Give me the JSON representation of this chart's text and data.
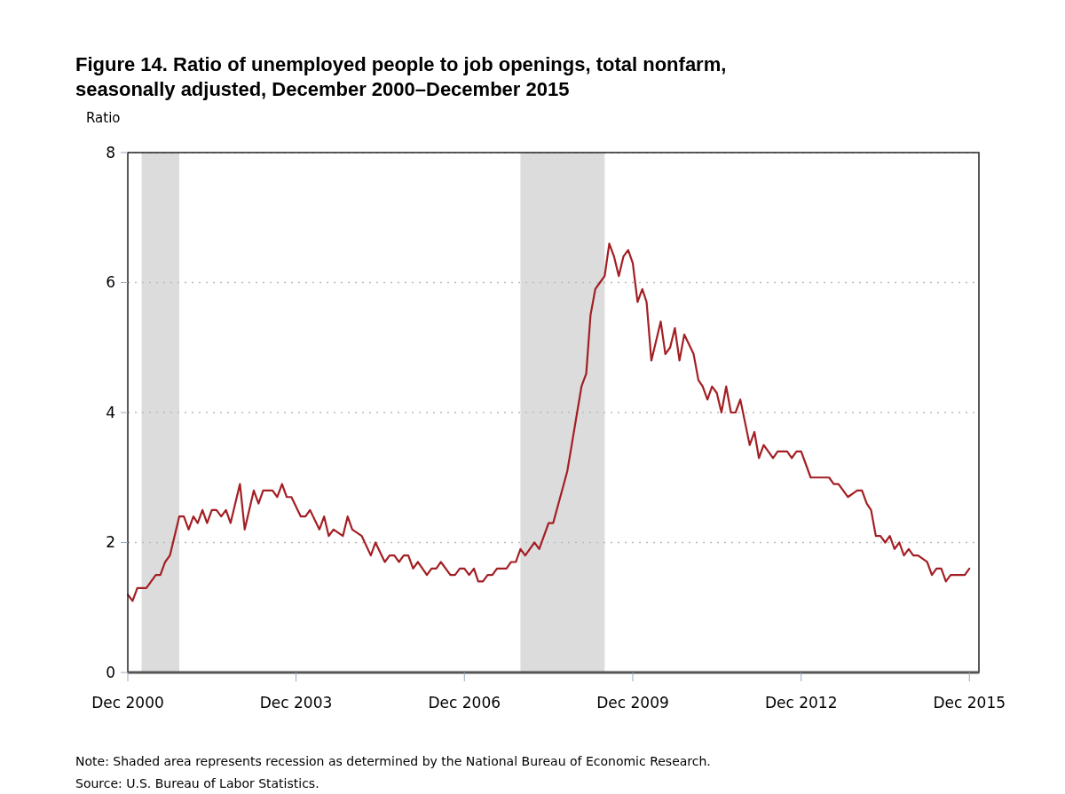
{
  "chart_data": {
    "type": "line",
    "title": "Figure 14. Ratio of unemployed people to job openings, total nonfarm, seasonally adjusted, December 2000–December 2015",
    "ylabel": "Ratio",
    "x": [
      "2000-12",
      "2001-01",
      "2001-02",
      "2001-04",
      "2001-06",
      "2001-07",
      "2001-08",
      "2001-09",
      "2001-11",
      "2001-12",
      "2002-01",
      "2002-02",
      "2002-03",
      "2002-04",
      "2002-05",
      "2002-06",
      "2002-07",
      "2002-08",
      "2002-09",
      "2002-10",
      "2002-12",
      "2003-01",
      "2003-03",
      "2003-04",
      "2003-05",
      "2003-07",
      "2003-08",
      "2003-09",
      "2003-10",
      "2003-11",
      "2004-01",
      "2004-02",
      "2004-03",
      "2004-05",
      "2004-06",
      "2004-07",
      "2004-08",
      "2004-10",
      "2004-11",
      "2004-12",
      "2005-02",
      "2005-04",
      "2005-05",
      "2005-07",
      "2005-08",
      "2005-09",
      "2005-10",
      "2005-11",
      "2005-12",
      "2006-01",
      "2006-02",
      "2006-04",
      "2006-05",
      "2006-06",
      "2006-07",
      "2006-09",
      "2006-10",
      "2006-11",
      "2006-12",
      "2007-01",
      "2007-02",
      "2007-03",
      "2007-04",
      "2007-05",
      "2007-06",
      "2007-07",
      "2007-09",
      "2007-10",
      "2007-11",
      "2007-12",
      "2008-01",
      "2008-03",
      "2008-04",
      "2008-06",
      "2008-07",
      "2008-10",
      "2009-01",
      "2009-02",
      "2009-03",
      "2009-04",
      "2009-05",
      "2009-06",
      "2009-07",
      "2009-08",
      "2009-09",
      "2009-10",
      "2009-11",
      "2009-12",
      "2010-01",
      "2010-02",
      "2010-03",
      "2010-04",
      "2010-06",
      "2010-07",
      "2010-08",
      "2010-09",
      "2010-10",
      "2010-11",
      "2011-01",
      "2011-02",
      "2011-03",
      "2011-04",
      "2011-05",
      "2011-06",
      "2011-07",
      "2011-08",
      "2011-09",
      "2011-10",
      "2011-11",
      "2012-01",
      "2012-02",
      "2012-03",
      "2012-04",
      "2012-06",
      "2012-07",
      "2012-09",
      "2012-10",
      "2012-11",
      "2012-12",
      "2013-02",
      "2013-06",
      "2013-07",
      "2013-08",
      "2013-10",
      "2013-12",
      "2014-01",
      "2014-02",
      "2014-03",
      "2014-04",
      "2014-05",
      "2014-06",
      "2014-07",
      "2014-08",
      "2014-09",
      "2014-10",
      "2014-11",
      "2014-12",
      "2015-01",
      "2015-03",
      "2015-04",
      "2015-05",
      "2015-06",
      "2015-07",
      "2015-08",
      "2015-11",
      "2015-12"
    ],
    "series": [
      {
        "color": "#a31f24",
        "values": [
          1.2,
          1.1,
          1.3,
          1.3,
          1.5,
          1.5,
          1.7,
          1.8,
          2.4,
          2.4,
          2.2,
          2.4,
          2.3,
          2.5,
          2.3,
          2.5,
          2.5,
          2.4,
          2.5,
          2.3,
          2.9,
          2.2,
          2.8,
          2.6,
          2.8,
          2.8,
          2.7,
          2.9,
          2.7,
          2.7,
          2.4,
          2.4,
          2.5,
          2.2,
          2.4,
          2.1,
          2.2,
          2.1,
          2.4,
          2.2,
          2.1,
          1.8,
          2.0,
          1.7,
          1.8,
          1.8,
          1.7,
          1.8,
          1.8,
          1.6,
          1.7,
          1.5,
          1.6,
          1.6,
          1.7,
          1.5,
          1.5,
          1.6,
          1.6,
          1.5,
          1.6,
          1.4,
          1.4,
          1.5,
          1.5,
          1.6,
          1.6,
          1.7,
          1.7,
          1.9,
          1.8,
          2.0,
          1.9,
          2.3,
          2.3,
          3.1,
          4.4,
          4.6,
          5.5,
          5.9,
          6.0,
          6.1,
          6.6,
          6.4,
          6.1,
          6.4,
          6.5,
          6.3,
          5.7,
          5.9,
          5.7,
          4.8,
          5.4,
          4.9,
          5.0,
          5.3,
          4.8,
          5.2,
          4.9,
          4.5,
          4.4,
          4.2,
          4.4,
          4.3,
          4.0,
          4.4,
          4.0,
          4.0,
          4.2,
          3.5,
          3.7,
          3.3,
          3.5,
          3.3,
          3.4,
          3.4,
          3.3,
          3.4,
          3.4,
          3.0,
          3.0,
          2.9,
          2.9,
          2.7,
          2.8,
          2.8,
          2.6,
          2.5,
          2.1,
          2.1,
          2.0,
          2.1,
          1.9,
          2.0,
          1.8,
          1.9,
          1.8,
          1.8,
          1.7,
          1.5,
          1.6,
          1.6,
          1.4,
          1.5,
          1.5,
          1.6
        ]
      }
    ],
    "xlim": [
      "2000-12",
      "2016-02"
    ],
    "xticks": [
      {
        "value": "2000-12",
        "label": "Dec 2000"
      },
      {
        "value": "2003-12",
        "label": "Dec 2003"
      },
      {
        "value": "2006-12",
        "label": "Dec 2006"
      },
      {
        "value": "2009-12",
        "label": "Dec 2009"
      },
      {
        "value": "2012-12",
        "label": "Dec 2012"
      },
      {
        "value": "2015-12",
        "label": "Dec 2015"
      }
    ],
    "ylim": [
      0,
      8
    ],
    "yticks": [
      0,
      2,
      4,
      6,
      8
    ],
    "grid": "y",
    "bands": [
      {
        "axis": "x",
        "from": "2001-03",
        "to": "2001-11",
        "color": "#dcdcdc"
      },
      {
        "axis": "x",
        "from": "2007-12",
        "to": "2009-06",
        "color": "#dcdcdc"
      }
    ],
    "annotations": [
      "Note: Shaded area represents recession as determined by the National Bureau of Economic Research.",
      "Source: U.S. Bureau of Labor Statistics."
    ]
  }
}
